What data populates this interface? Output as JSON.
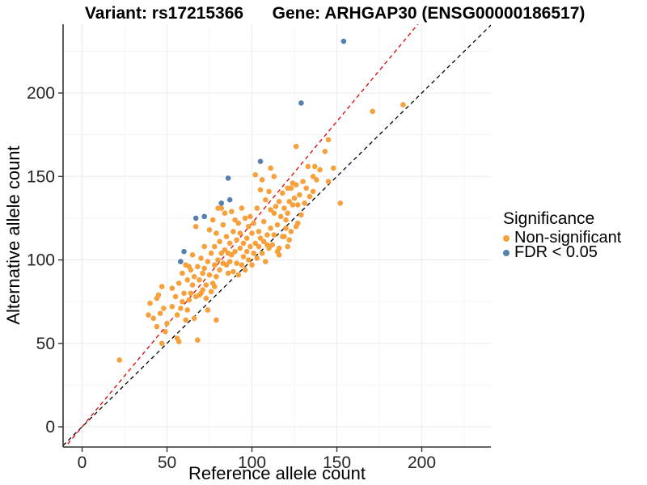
{
  "chart_data": {
    "type": "scatter",
    "title_left": "Variant: rs17215366",
    "title_right": "Gene: ARHGAP30 (ENSG00000186517)",
    "xlabel": "Reference allele count",
    "ylabel": "Alternative allele count",
    "x_ticks": [
      0,
      50,
      100,
      150,
      200
    ],
    "y_ticks": [
      0,
      50,
      100,
      150,
      200
    ],
    "x_minor": [
      25,
      75,
      125,
      175,
      225
    ],
    "y_minor": [
      25,
      75,
      125,
      175,
      225
    ],
    "xlim": [
      -11.2,
      240.7
    ],
    "ylim": [
      -12.1,
      241.2
    ],
    "grid": true,
    "legend": {
      "title": "Significance",
      "position": "right",
      "entries": [
        {
          "label": "Non-significant",
          "color": "#F7A13D"
        },
        {
          "label": "FDR < 0.05",
          "color": "#5581AF"
        }
      ]
    },
    "lines": [
      {
        "name": "identity",
        "slope": 1,
        "intercept": 0,
        "color": "#000000",
        "dash": "5 4"
      },
      {
        "name": "fit",
        "slope": 1.22,
        "intercept": 0,
        "color": "#E30000",
        "dash": "5 4"
      }
    ],
    "colors": {
      "non_significant": "#F7A13D",
      "fdr": "#5581AF",
      "grid_major": "#EBEBEB",
      "grid_minor": "#F5F5F5",
      "axis": "#333333",
      "tick_text": "#262626"
    },
    "series": [
      {
        "name": "Non-significant",
        "color": "#F7A13D",
        "points": [
          [
            22,
            40
          ],
          [
            39,
            67
          ],
          [
            40,
            74
          ],
          [
            42,
            65
          ],
          [
            44,
            60
          ],
          [
            44,
            77
          ],
          [
            45,
            79
          ],
          [
            46,
            68
          ],
          [
            47,
            50
          ],
          [
            47,
            84
          ],
          [
            48,
            71
          ],
          [
            49,
            57
          ],
          [
            50,
            62
          ],
          [
            53,
            72
          ],
          [
            53,
            83
          ],
          [
            56,
            53
          ],
          [
            56,
            67
          ],
          [
            55,
            78
          ],
          [
            57,
            86
          ],
          [
            57,
            51
          ],
          [
            58,
            71
          ],
          [
            59,
            92
          ],
          [
            59,
            75
          ],
          [
            60,
            80
          ],
          [
            61,
            97
          ],
          [
            61,
            64
          ],
          [
            62,
            88
          ],
          [
            62,
            70
          ],
          [
            63,
            76
          ],
          [
            63,
            96
          ],
          [
            64,
            94
          ],
          [
            64,
            80
          ],
          [
            65,
            85
          ],
          [
            65,
            103
          ],
          [
            66,
            90
          ],
          [
            66,
            65
          ],
          [
            67,
            78
          ],
          [
            67,
            120
          ],
          [
            68,
            96
          ],
          [
            68,
            52
          ],
          [
            69,
            88
          ],
          [
            69,
            79
          ],
          [
            70,
            101
          ],
          [
            70,
            80
          ],
          [
            71,
            92
          ],
          [
            71,
            82
          ],
          [
            72,
            108
          ],
          [
            72,
            95
          ],
          [
            73,
            85
          ],
          [
            73,
            77
          ],
          [
            74,
            99
          ],
          [
            74,
            70
          ],
          [
            75,
            118
          ],
          [
            75,
            91
          ],
          [
            76,
            104
          ],
          [
            76,
            81
          ],
          [
            77,
            124
          ],
          [
            77,
            86
          ],
          [
            78,
            108
          ],
          [
            78,
            97
          ],
          [
            78,
            84
          ],
          [
            79,
            116
          ],
          [
            79,
            90
          ],
          [
            79,
            64
          ],
          [
            80,
            100
          ],
          [
            80,
            131
          ],
          [
            81,
            111
          ],
          [
            81,
            94
          ],
          [
            82,
            104
          ],
          [
            82,
            131
          ],
          [
            83,
            121
          ],
          [
            83,
            98
          ],
          [
            84,
            128
          ],
          [
            84,
            106
          ],
          [
            85,
            97
          ],
          [
            85,
            114
          ],
          [
            86,
            104
          ],
          [
            86,
            92
          ],
          [
            87,
            110
          ],
          [
            87,
            99
          ],
          [
            88,
            129
          ],
          [
            88,
            103
          ],
          [
            89,
            93
          ],
          [
            89,
            117
          ],
          [
            90,
            124
          ],
          [
            90,
            105
          ],
          [
            91,
            98
          ],
          [
            91,
            112
          ],
          [
            92,
            122
          ],
          [
            92,
            91
          ],
          [
            93,
            107
          ],
          [
            93,
            116
          ],
          [
            94,
            97
          ],
          [
            94,
            131
          ],
          [
            95,
            110
          ],
          [
            95,
            102
          ],
          [
            96,
            125
          ],
          [
            96,
            94
          ],
          [
            97,
            113
          ],
          [
            97,
            105
          ],
          [
            98,
            120
          ],
          [
            98,
            100
          ],
          [
            99,
            126
          ],
          [
            99,
            108
          ],
          [
            100,
            116
          ],
          [
            100,
            97
          ],
          [
            101,
            122
          ],
          [
            101,
            104
          ],
          [
            102,
            151
          ],
          [
            102,
            110
          ],
          [
            103,
            131
          ],
          [
            103,
            101
          ],
          [
            104,
            117
          ],
          [
            104,
            108
          ],
          [
            105,
            142
          ],
          [
            105,
            113
          ],
          [
            106,
            148
          ],
          [
            106,
            104
          ],
          [
            107,
            123
          ],
          [
            107,
            111
          ],
          [
            108,
            136
          ],
          [
            108,
            99
          ],
          [
            109,
            115
          ],
          [
            109,
            109
          ],
          [
            110,
            141
          ],
          [
            110,
            107
          ],
          [
            111,
            155
          ],
          [
            111,
            130
          ],
          [
            111,
            119
          ],
          [
            112,
            109
          ],
          [
            113,
            150
          ],
          [
            113,
            128
          ],
          [
            113,
            115
          ],
          [
            114,
            132
          ],
          [
            115,
            121
          ],
          [
            115,
            105
          ],
          [
            116,
            135
          ],
          [
            116,
            107
          ],
          [
            116,
            103
          ],
          [
            117,
            126
          ],
          [
            118,
            114
          ],
          [
            118,
            140
          ],
          [
            119,
            131
          ],
          [
            119,
            114
          ],
          [
            120,
            119
          ],
          [
            120,
            124
          ],
          [
            121,
            143
          ],
          [
            121,
            128
          ],
          [
            121,
            108
          ],
          [
            122,
            135
          ],
          [
            122,
            112
          ],
          [
            123,
            117
          ],
          [
            123,
            143
          ],
          [
            124,
            133
          ],
          [
            124,
            146
          ],
          [
            125,
            137
          ],
          [
            126,
            120
          ],
          [
            126,
            145
          ],
          [
            126,
            168
          ],
          [
            127,
            133
          ],
          [
            127,
            122
          ],
          [
            128,
            139
          ],
          [
            129,
            127
          ],
          [
            130,
            147
          ],
          [
            131,
            134
          ],
          [
            132,
            143
          ],
          [
            133,
            156
          ],
          [
            134,
            138
          ],
          [
            136,
            141
          ],
          [
            136,
            150
          ],
          [
            137,
            156
          ],
          [
            138,
            148
          ],
          [
            140,
            154
          ],
          [
            143,
            165
          ],
          [
            145,
            172
          ],
          [
            145,
            147
          ],
          [
            148,
            155
          ],
          [
            152,
            134
          ],
          [
            171,
            189
          ],
          [
            189,
            193
          ]
        ]
      },
      {
        "name": "FDR < 0.05",
        "color": "#5581AF",
        "points": [
          [
            154,
            231
          ],
          [
            129,
            194
          ],
          [
            105,
            159
          ],
          [
            86,
            149
          ],
          [
            87,
            136
          ],
          [
            82,
            134
          ],
          [
            72,
            126
          ],
          [
            67,
            125
          ],
          [
            60,
            105
          ],
          [
            58,
            99
          ]
        ]
      }
    ]
  }
}
